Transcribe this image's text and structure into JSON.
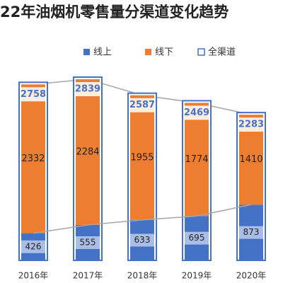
{
  "chart_data": {
    "type": "stacked_bar",
    "title": "22年油烟机零售量分渠道变化趋势",
    "categories": [
      "2016年",
      "2017年",
      "2018年",
      "2019年",
      "2020年"
    ],
    "series": [
      {
        "name": "线上",
        "color": "#4472c4",
        "values": [
          426,
          555,
          633,
          695,
          873
        ]
      },
      {
        "name": "线下",
        "color": "#ed7d31",
        "values": [
          2332,
          2284,
          1955,
          1774,
          1410
        ]
      },
      {
        "name": "全渠道",
        "color": "#4472c4",
        "values": [
          2758,
          2839,
          2587,
          2469,
          2283
        ]
      }
    ],
    "legend": "top"
  }
}
